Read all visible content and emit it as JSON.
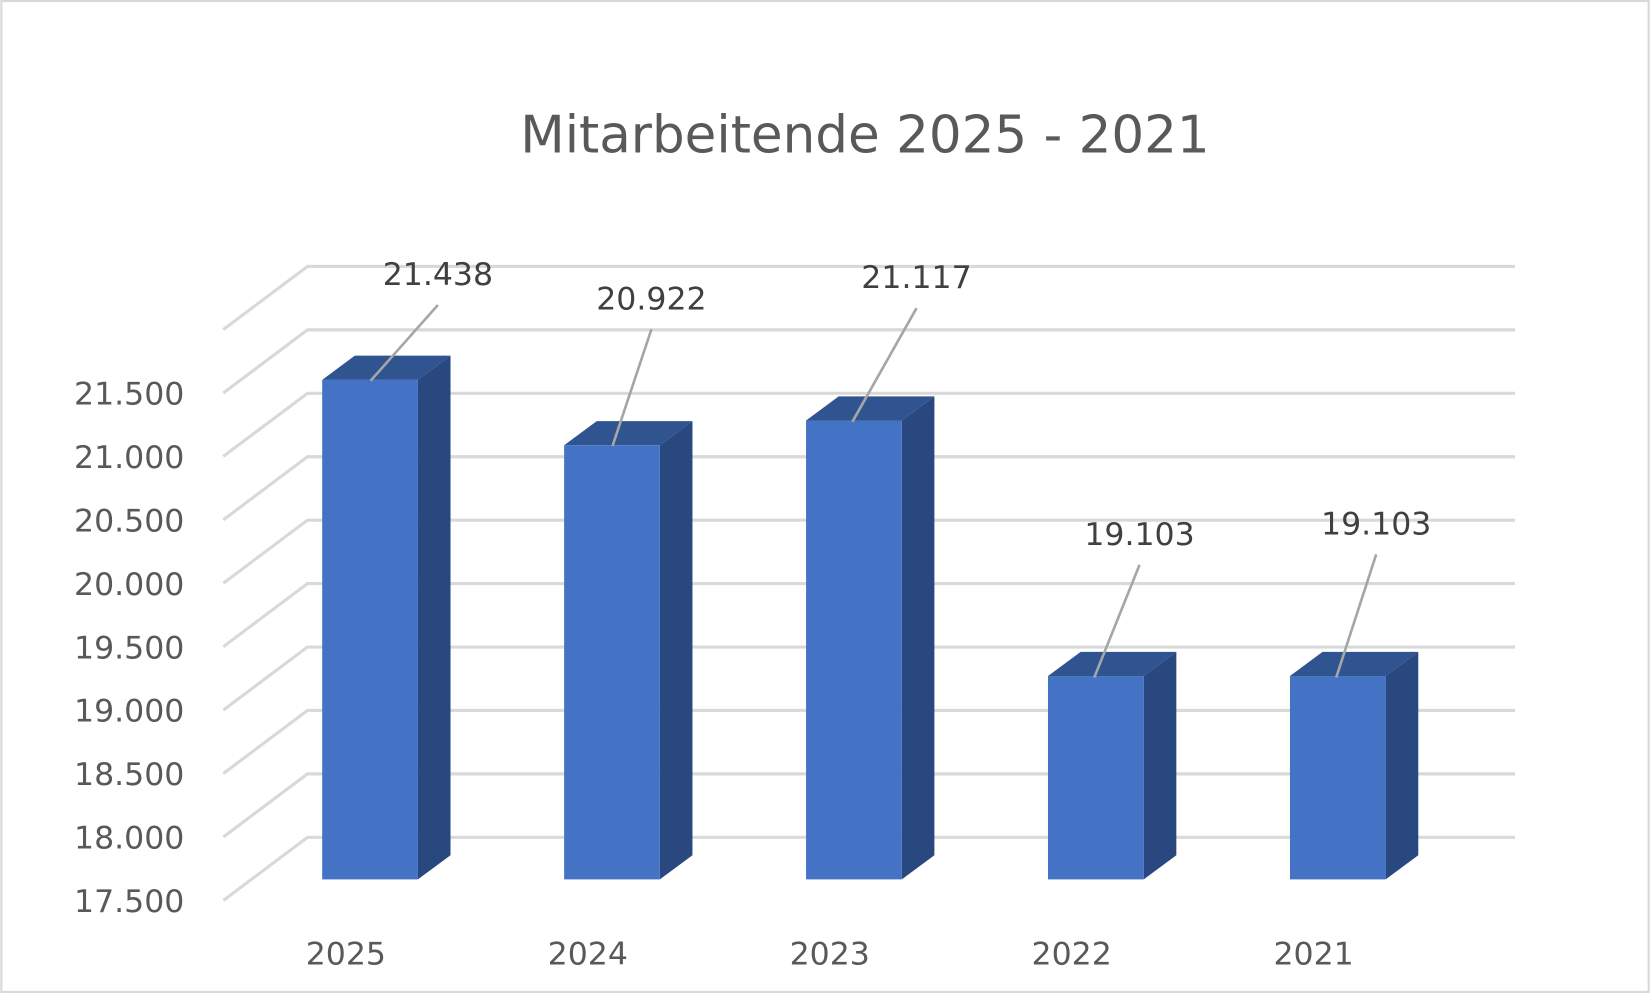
{
  "chart_data": {
    "type": "bar",
    "style": "3d-column",
    "title": "Mitarbeitende 2025 - 2021",
    "categories": [
      "2025",
      "2024",
      "2023",
      "2022",
      "2021"
    ],
    "values": [
      21438,
      20922,
      21117,
      19103,
      19103
    ],
    "data_labels": [
      "21.438",
      "20.922",
      "21.117",
      "19.103",
      "19.103"
    ],
    "ylim": [
      17500,
      22000
    ],
    "yticks": [
      17500,
      18000,
      18500,
      19000,
      19500,
      20000,
      20500,
      21000,
      21500
    ],
    "ytick_labels": [
      "17.500",
      "18.000",
      "18.500",
      "19.000",
      "19.500",
      "20.000",
      "20.500",
      "21.000",
      "21.500"
    ],
    "grid": true,
    "legend": "none",
    "colors": {
      "bar_front": "#4472C4",
      "bar_top": "#30548F",
      "bar_side": "#2A4880",
      "grid": "#D9D9D9",
      "text": "#595959",
      "leader": "#A6A6A6"
    }
  }
}
